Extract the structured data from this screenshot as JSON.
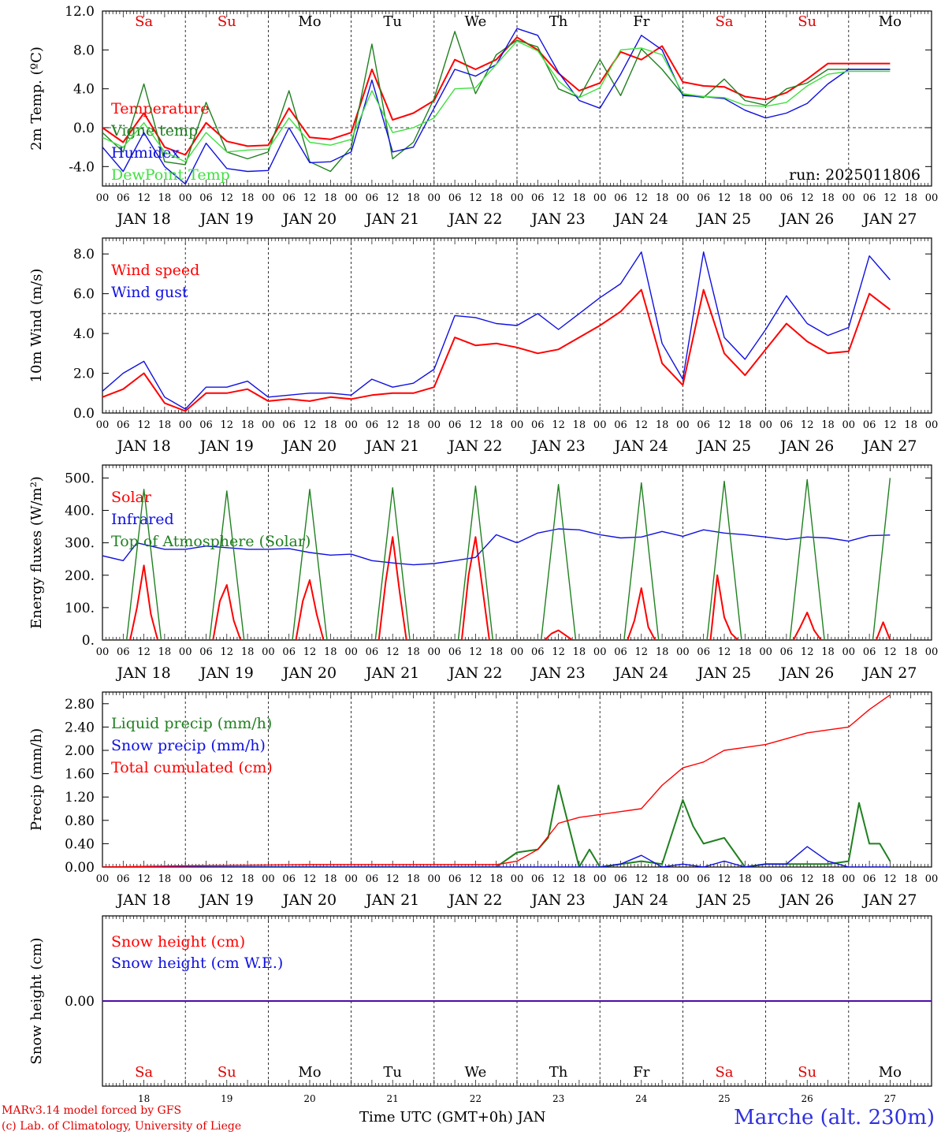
{
  "days": [
    {
      "name": "Sa",
      "date": "JAN 18",
      "num": "18",
      "color": "#e00000"
    },
    {
      "name": "Su",
      "date": "JAN 19",
      "num": "19",
      "color": "#e00000"
    },
    {
      "name": "Mo",
      "date": "JAN 20",
      "num": "20",
      "color": "#000000"
    },
    {
      "name": "Tu",
      "date": "JAN 21",
      "num": "21",
      "color": "#000000"
    },
    {
      "name": "We",
      "date": "JAN 22",
      "num": "22",
      "color": "#000000"
    },
    {
      "name": "Th",
      "date": "JAN 23",
      "num": "23",
      "color": "#000000"
    },
    {
      "name": "Fr",
      "date": "JAN 24",
      "num": "24",
      "color": "#000000"
    },
    {
      "name": "Sa",
      "date": "JAN 25",
      "num": "25",
      "color": "#e00000"
    },
    {
      "name": "Su",
      "date": "JAN 26",
      "num": "26",
      "color": "#e00000"
    },
    {
      "name": "Mo",
      "date": "JAN 27",
      "num": "27",
      "color": "#000000"
    }
  ],
  "hour_ticks": [
    "00",
    "06",
    "12",
    "18"
  ],
  "final_tick": "00",
  "footer": {
    "credit_line1": "MARv3.14 model forced by GFS",
    "credit_line2": "(c) Lab. of Climatology, University of Liege",
    "xlabel": "Time UTC (GMT+0h) JAN",
    "location": "Marche (alt. 230m)"
  },
  "chart_data": [
    {
      "type": "line",
      "ylabel": "2m Temp. (ºC)",
      "yticks": [
        "12.0",
        "8.0",
        "4.0",
        "0.0",
        "-4.0"
      ],
      "ylim": [
        -6,
        12
      ],
      "ref_line": 0,
      "annotation": "run: 2025011806",
      "x_unit": "hours since JAN 18 00 UTC",
      "series": [
        {
          "name": "Temperature",
          "color": "#ff0000",
          "x": [
            0,
            6,
            12,
            18,
            24,
            30,
            36,
            42,
            48,
            54,
            60,
            66,
            72,
            78,
            84,
            90,
            96,
            102,
            108,
            114,
            120,
            126,
            132,
            138,
            144,
            150,
            156,
            162,
            168,
            174,
            180,
            186,
            192,
            198,
            204,
            210,
            216,
            222,
            228
          ],
          "y": [
            0,
            -1.5,
            1.5,
            -2,
            -2.8,
            0.5,
            -1.4,
            -1.9,
            -1.8,
            2,
            -1,
            -1.2,
            -0.5,
            6,
            0.8,
            1.5,
            2.8,
            7,
            6,
            7,
            9.3,
            8,
            5.6,
            3.8,
            4.6,
            7.8,
            7,
            8.4,
            4.7,
            4.3,
            4.2,
            3.2,
            2.9,
            3.6,
            5,
            6.6,
            6.6,
            6.6,
            6.6
          ]
        },
        {
          "name": "Vigne temp",
          "color": "#208020",
          "x": [
            0,
            6,
            12,
            18,
            24,
            30,
            36,
            42,
            48,
            54,
            60,
            66,
            72,
            78,
            84,
            90,
            96,
            102,
            108,
            114,
            120,
            126,
            132,
            138,
            144,
            150,
            156,
            162,
            168,
            174,
            180,
            186,
            192,
            198,
            204,
            210,
            216,
            222,
            228
          ],
          "y": [
            -0.5,
            -2.5,
            4.5,
            -3.5,
            -3.8,
            2.6,
            -2.5,
            -3.2,
            -2.5,
            3.8,
            -3.5,
            -4.5,
            -2,
            8.6,
            -3.2,
            -1.5,
            3,
            9.9,
            3.5,
            7.5,
            9,
            8.3,
            4,
            3.1,
            7,
            3.3,
            8.1,
            6,
            3.4,
            3.1,
            5,
            2.8,
            2.3,
            4,
            4.6,
            6,
            6,
            6,
            6
          ]
        },
        {
          "name": "Humidex",
          "color": "#1010e0",
          "x": [
            0,
            6,
            12,
            18,
            24,
            30,
            36,
            42,
            48,
            54,
            60,
            66,
            72,
            78,
            84,
            90,
            96,
            102,
            108,
            114,
            120,
            126,
            132,
            138,
            144,
            150,
            156,
            162,
            168,
            174,
            180,
            186,
            192,
            198,
            204,
            210,
            216,
            222,
            228
          ],
          "y": [
            -2,
            -4.5,
            -0.5,
            -4,
            -5.8,
            -1.6,
            -4.2,
            -4.5,
            -4.4,
            0,
            -3.6,
            -3.5,
            -2.5,
            4.9,
            -2.5,
            -2,
            2,
            6,
            5.3,
            6.5,
            10.2,
            9.5,
            5.7,
            2.8,
            2,
            5.5,
            9.5,
            8,
            3.3,
            3.2,
            3,
            1.8,
            1,
            1.5,
            2.5,
            4.5,
            6,
            6,
            6
          ]
        },
        {
          "name": "DewPoint Temp",
          "color": "#40e040",
          "x": [
            0,
            6,
            12,
            18,
            24,
            30,
            36,
            42,
            48,
            54,
            60,
            66,
            72,
            78,
            84,
            90,
            96,
            102,
            108,
            114,
            120,
            126,
            132,
            138,
            144,
            150,
            156,
            162,
            168,
            174,
            180,
            186,
            192,
            198,
            204,
            210,
            216,
            222,
            228
          ],
          "y": [
            -1,
            -2,
            0.5,
            -2.5,
            -3.5,
            -0.5,
            -2.5,
            -2.3,
            -2.2,
            1,
            -1.5,
            -1.8,
            -1.2,
            3.8,
            -0.5,
            0,
            1,
            4,
            4.1,
            6.5,
            8.9,
            7.9,
            4.8,
            3.1,
            4.1,
            8,
            8.2,
            7.5,
            3.5,
            3.2,
            3.1,
            2.3,
            2.2,
            2.6,
            4.3,
            5.5,
            5.8,
            5.8,
            5.8
          ]
        }
      ]
    },
    {
      "type": "line",
      "ylabel": "10m Wind (m/s)",
      "yticks": [
        "8.0",
        "6.0",
        "4.0",
        "2.0",
        "0.0"
      ],
      "ylim": [
        0,
        8.8
      ],
      "ref_line": 5,
      "x_unit": "hours since JAN 18 00 UTC",
      "series": [
        {
          "name": "Wind speed",
          "color": "#ff0000",
          "x": [
            0,
            6,
            12,
            18,
            24,
            30,
            36,
            42,
            48,
            54,
            60,
            66,
            72,
            78,
            84,
            90,
            96,
            102,
            108,
            114,
            120,
            126,
            132,
            138,
            144,
            150,
            156,
            162,
            168,
            174,
            180,
            186,
            192,
            198,
            204,
            210,
            216,
            222,
            228
          ],
          "y": [
            0.8,
            1.2,
            2,
            0.5,
            0.1,
            1,
            1,
            1.2,
            0.6,
            0.7,
            0.6,
            0.8,
            0.7,
            0.9,
            1,
            1,
            1.3,
            3.8,
            3.4,
            3.5,
            3.3,
            3,
            3.2,
            3.8,
            4.4,
            5.1,
            6.2,
            2.5,
            1.4,
            6.2,
            3,
            1.9,
            3.2,
            4.5,
            3.6,
            3,
            3.1,
            6,
            5.2
          ]
        },
        {
          "name": "Wind gust",
          "color": "#1010e0",
          "x": [
            0,
            6,
            12,
            18,
            24,
            30,
            36,
            42,
            48,
            54,
            60,
            66,
            72,
            78,
            84,
            90,
            96,
            102,
            108,
            114,
            120,
            126,
            132,
            138,
            144,
            150,
            156,
            162,
            168,
            174,
            180,
            186,
            192,
            198,
            204,
            210,
            216,
            222,
            228
          ],
          "y": [
            1.1,
            2,
            2.6,
            0.8,
            0.2,
            1.3,
            1.3,
            1.6,
            0.8,
            0.9,
            1,
            1,
            0.9,
            1.7,
            1.3,
            1.5,
            2.2,
            4.9,
            4.8,
            4.5,
            4.4,
            5,
            4.2,
            5,
            5.8,
            6.5,
            8.1,
            3.5,
            1.7,
            8.1,
            3.8,
            2.7,
            4.2,
            5.9,
            4.5,
            3.9,
            4.3,
            7.9,
            6.7
          ]
        }
      ]
    },
    {
      "type": "line",
      "ylabel": "Energy fluxes (W/m²)",
      "yticks": [
        "500.",
        "400.",
        "300.",
        "200.",
        "100.",
        "0."
      ],
      "ylim": [
        0,
        540
      ],
      "x_unit": "hours since JAN 18 00 UTC",
      "series": [
        {
          "name": "Solar",
          "color": "#ff0000",
          "x": [
            0,
            8,
            10,
            12,
            14,
            16,
            32,
            34,
            36,
            38,
            40,
            56,
            58,
            60,
            62,
            64,
            80,
            82,
            84,
            86,
            88,
            104,
            106,
            108,
            110,
            112,
            128,
            130,
            132,
            134,
            136,
            152,
            154,
            156,
            158,
            160,
            176,
            178,
            180,
            182,
            184,
            200,
            202,
            204,
            206,
            208,
            224,
            226,
            228
          ],
          "y": [
            0,
            0,
            100,
            230,
            80,
            0,
            0,
            120,
            170,
            60,
            0,
            0,
            120,
            185,
            80,
            0,
            0,
            180,
            318,
            150,
            0,
            0,
            200,
            318,
            160,
            0,
            0,
            20,
            30,
            15,
            0,
            0,
            60,
            160,
            40,
            0,
            0,
            200,
            70,
            20,
            0,
            0,
            40,
            85,
            30,
            0,
            0,
            55,
            0
          ]
        },
        {
          "name": "Infrared",
          "color": "#1010e0",
          "x": [
            0,
            6,
            10,
            14,
            18,
            24,
            30,
            36,
            42,
            48,
            54,
            60,
            66,
            72,
            78,
            84,
            90,
            96,
            102,
            108,
            114,
            120,
            126,
            132,
            138,
            144,
            150,
            156,
            162,
            168,
            174,
            180,
            186,
            192,
            198,
            204,
            210,
            216,
            222,
            228
          ],
          "y": [
            260,
            245,
            300,
            290,
            280,
            280,
            290,
            285,
            280,
            280,
            282,
            270,
            262,
            265,
            245,
            238,
            232,
            236,
            245,
            255,
            325,
            300,
            330,
            343,
            340,
            325,
            315,
            318,
            335,
            320,
            340,
            330,
            325,
            318,
            310,
            318,
            315,
            305,
            322,
            324
          ]
        },
        {
          "name": "Top of Atmosphere (Solar)",
          "color": "#208020",
          "x": [
            0,
            7,
            12,
            17,
            31,
            36,
            41,
            55,
            60,
            65,
            79,
            84,
            89,
            103,
            108,
            113,
            127,
            132,
            137,
            151,
            156,
            161,
            175,
            180,
            185,
            199,
            204,
            209,
            223,
            228
          ],
          "y": [
            0,
            0,
            465,
            0,
            0,
            460,
            0,
            0,
            465,
            0,
            0,
            470,
            0,
            0,
            475,
            0,
            0,
            480,
            0,
            0,
            485,
            0,
            0,
            490,
            0,
            0,
            495,
            0,
            0,
            500
          ]
        }
      ]
    },
    {
      "type": "line",
      "ylabel": "Precip (mm/h)",
      "yticks": [
        "2.80",
        "2.40",
        "2.00",
        "1.60",
        "1.20",
        "0.80",
        "0.40",
        "0.00"
      ],
      "ylim": [
        0,
        3.0
      ],
      "x_unit": "hours since JAN 18 00 UTC",
      "series": [
        {
          "name": "Liquid precip (mm/h)",
          "color": "#208020",
          "x": [
            0,
            114,
            120,
            126,
            129,
            132,
            138,
            141,
            144,
            156,
            162,
            168,
            171,
            174,
            180,
            186,
            192,
            198,
            204,
            210,
            216,
            219,
            222,
            225,
            228
          ],
          "y": [
            0,
            0,
            0.25,
            0.3,
            0.5,
            1.4,
            0,
            0.3,
            0,
            0.1,
            0.05,
            1.15,
            0.7,
            0.4,
            0.5,
            0,
            0.05,
            0.05,
            0.05,
            0.05,
            0.1,
            1.1,
            0.4,
            0.4,
            0.1
          ]
        },
        {
          "name": "Snow precip (mm/h)",
          "color": "#1010e0",
          "x": [
            0,
            144,
            150,
            156,
            162,
            168,
            174,
            180,
            186,
            192,
            198,
            204,
            210,
            216,
            222,
            228
          ],
          "y": [
            0,
            0,
            0.05,
            0.2,
            0,
            0.05,
            0,
            0.1,
            0,
            0.05,
            0.05,
            0.35,
            0.1,
            0,
            0,
            0
          ]
        },
        {
          "name": "Total cumulated (cm)",
          "color": "#ff0000",
          "x": [
            0,
            24,
            60,
            114,
            120,
            126,
            132,
            138,
            144,
            150,
            156,
            162,
            168,
            174,
            180,
            186,
            192,
            198,
            204,
            210,
            216,
            222,
            228
          ],
          "y": [
            0,
            0.02,
            0.04,
            0.04,
            0.1,
            0.3,
            0.75,
            0.85,
            0.9,
            0.95,
            1.0,
            1.4,
            1.7,
            1.8,
            2.0,
            2.05,
            2.1,
            2.2,
            2.3,
            2.35,
            2.4,
            2.7,
            2.95
          ]
        }
      ]
    },
    {
      "type": "line",
      "ylabel": "Snow height (cm)",
      "yticks": [
        "0.00"
      ],
      "ylim": [
        -1,
        1
      ],
      "x_unit": "hours since JAN 18 00 UTC",
      "series": [
        {
          "name": "Snow height (cm)",
          "color": "#ff0000",
          "x": [
            0,
            240
          ],
          "y": [
            0,
            0
          ]
        },
        {
          "name": "Snow height (cm W.E.)",
          "color": "#1010e0",
          "x": [
            0,
            240
          ],
          "y": [
            0,
            0
          ]
        }
      ]
    }
  ]
}
